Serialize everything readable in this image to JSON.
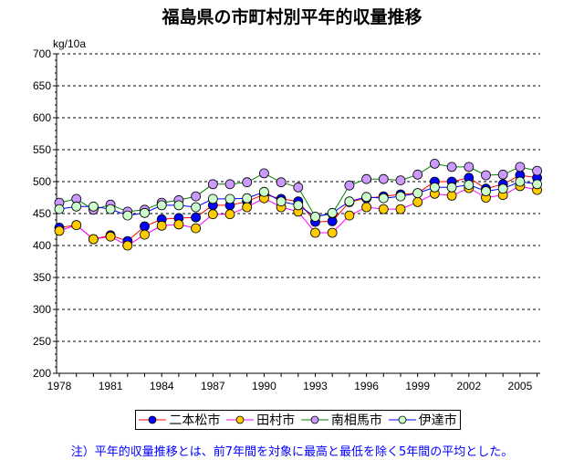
{
  "chart_data": {
    "type": "line",
    "title": "福島県の市町村別平年的収量推移",
    "ylabel": "kg/10a",
    "ylim": [
      200,
      700
    ],
    "yticks": [
      200,
      250,
      300,
      350,
      400,
      450,
      500,
      550,
      600,
      650,
      700
    ],
    "xticks": [
      1978,
      1981,
      1984,
      1987,
      1990,
      1993,
      1996,
      1999,
      2002,
      2005
    ],
    "grid": "horizontal dashed",
    "legend": "bottom",
    "x": [
      1978,
      1979,
      1980,
      1981,
      1982,
      1983,
      1984,
      1985,
      1986,
      1987,
      1988,
      1989,
      1990,
      1991,
      1992,
      1993,
      1994,
      1995,
      1996,
      1997,
      1998,
      1999,
      2000,
      2001,
      2002,
      2003,
      2004,
      2005,
      2006
    ],
    "series": [
      {
        "name": "二本松市",
        "line": "#ff0000",
        "marker": "#0000ff",
        "values": [
          428,
          432,
          410,
          416,
          407,
          430,
          441,
          443,
          444,
          463,
          463,
          469,
          480,
          473,
          469,
          437,
          438,
          468,
          474,
          477,
          480,
          482,
          500,
          500,
          506,
          489,
          496,
          510,
          506
        ]
      },
      {
        "name": "田村市",
        "line": "#ff00ff",
        "marker": "#ffcc00",
        "values": [
          423,
          432,
          410,
          414,
          400,
          417,
          431,
          433,
          427,
          449,
          449,
          460,
          474,
          460,
          453,
          420,
          420,
          447,
          460,
          457,
          457,
          468,
          481,
          478,
          490,
          475,
          479,
          493,
          487
        ]
      },
      {
        "name": "南相馬市",
        "line": "#008000",
        "marker": "#cc99ff",
        "values": [
          467,
          473,
          456,
          464,
          453,
          456,
          467,
          471,
          477,
          496,
          496,
          499,
          513,
          499,
          491,
          445,
          450,
          494,
          504,
          504,
          502,
          511,
          528,
          523,
          523,
          510,
          511,
          523,
          517
        ]
      },
      {
        "name": "伊達市",
        "line": "#0000ff",
        "marker": "#ccffcc",
        "values": [
          457,
          461,
          461,
          457,
          447,
          451,
          463,
          463,
          460,
          473,
          473,
          474,
          484,
          469,
          463,
          445,
          451,
          469,
          476,
          474,
          477,
          482,
          491,
          491,
          495,
          485,
          489,
          500,
          496
        ]
      }
    ]
  },
  "note": "注）平年的収量推移とは、前7年間を対象に最高と最低を除く5年間の平均とした。"
}
